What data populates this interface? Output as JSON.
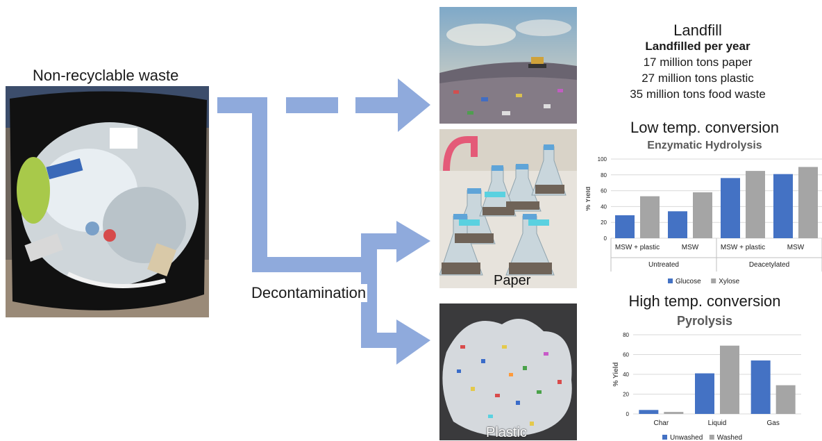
{
  "left": {
    "title": "Non-recyclable waste",
    "photo_icon": "trash-bag-photo"
  },
  "flow": {
    "label": "Decontamination",
    "arrow_color": "#8faadc"
  },
  "images": {
    "landfill": {
      "icon": "landfill-photo"
    },
    "paper": {
      "caption": "Paper",
      "icon": "paper-flasks-photo"
    },
    "plastic": {
      "caption": "Plastic",
      "icon": "plastic-shreds-photo"
    }
  },
  "landfill_info": {
    "title": "Landfill",
    "subtitle": "Landfilled per year",
    "lines": [
      "17 million tons paper",
      "27 million tons plastic",
      "35 million tons food waste"
    ]
  },
  "low_temp": {
    "title": "Low temp. conversion"
  },
  "high_temp": {
    "title": "High temp. conversion"
  },
  "chart_data": [
    {
      "type": "bar",
      "title": "Enzymatic Hydrolysis",
      "ylabel": "% Yield",
      "ylim": [
        0,
        100
      ],
      "yticks": [
        "0",
        "20",
        "40",
        "60",
        "80",
        "100"
      ],
      "categories": [
        "MSW + plastic",
        "MSW",
        "MSW + plastic",
        "MSW"
      ],
      "groups": [
        {
          "label": "Untreated",
          "span": [
            0,
            1
          ]
        },
        {
          "label": "Deacetylated",
          "span": [
            2,
            3
          ]
        }
      ],
      "series": [
        {
          "name": "Glucose",
          "color": "#4472c4",
          "values": [
            29,
            34,
            76,
            81
          ]
        },
        {
          "name": "Xylose",
          "color": "#a5a5a5",
          "values": [
            53,
            58,
            85,
            90
          ]
        }
      ],
      "grid": true,
      "legend": "bottom"
    },
    {
      "type": "bar",
      "title": "Pyrolysis",
      "ylabel": "% Yield",
      "ylim": [
        0,
        80
      ],
      "yticks": [
        "0",
        "20",
        "40",
        "60",
        "80"
      ],
      "categories": [
        "Char",
        "Liquid",
        "Gas"
      ],
      "series": [
        {
          "name": "Unwashed",
          "color": "#4472c4",
          "values": [
            4,
            41,
            54
          ]
        },
        {
          "name": "Washed",
          "color": "#a5a5a5",
          "values": [
            2,
            69,
            29
          ]
        }
      ],
      "grid": true,
      "legend": "bottom"
    }
  ]
}
